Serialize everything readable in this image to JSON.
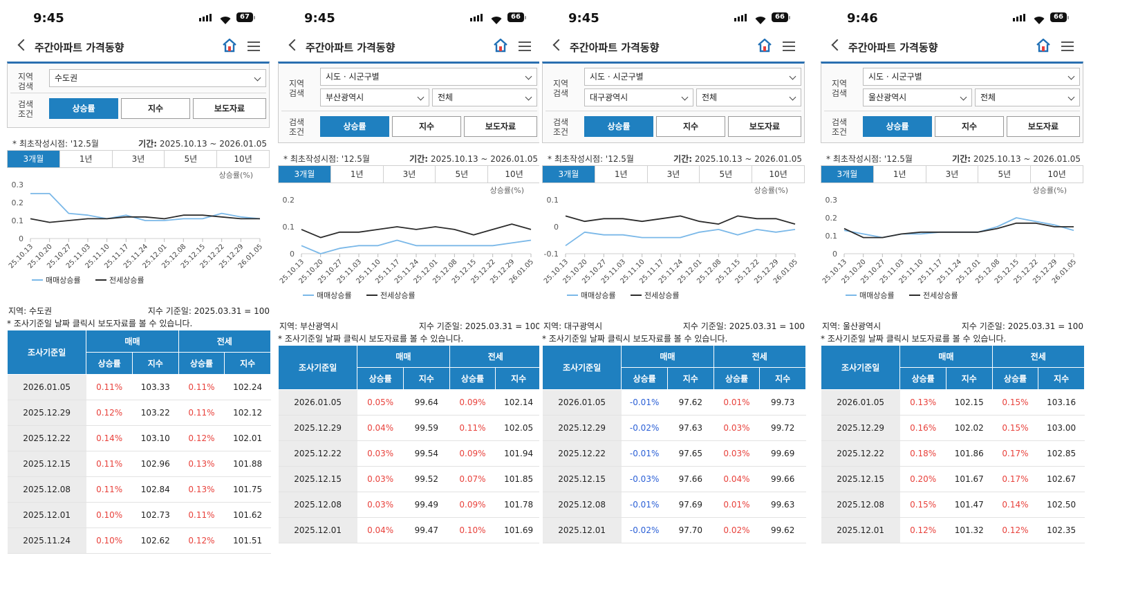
{
  "common": {
    "app_title": "주간아파트 가격동향",
    "label_region": "지역\n검색",
    "label_cond": "검색\n조건",
    "cond_buttons": [
      "상승률",
      "지수",
      "보도자료"
    ],
    "first_date": "* 최초작성시점: '12.5월",
    "period_label": "기간:",
    "period_value": "2025.10.13 ~ 2026.01.05",
    "period_tabs": [
      "3개월",
      "1년",
      "3년",
      "5년",
      "10년"
    ],
    "unit_label": "상승률(%)",
    "legend_sale": "매매상승률",
    "legend_jeonse": "전세상승률",
    "index_ref": "지수 기준일: 2025.03.31 = 100",
    "note": "* 조사기준일 날짜 클릭시 보도자료를 볼 수 있습니다.",
    "th_date": "조사기준일",
    "th_sale": "매매",
    "th_jeonse": "전세",
    "th_rate": "상승률",
    "th_index": "지수",
    "colors": {
      "accent": "#1f80c0",
      "sale_line": "#7ab8e8",
      "jeonse_line": "#2b2b2b",
      "up": "#e8413b",
      "down": "#2a5fd6"
    }
  },
  "panels": [
    {
      "time": "9:45",
      "battery": "67",
      "selects": [
        "수도권"
      ],
      "region": "지역: 수도권",
      "rows": [
        [
          "2026.01.05",
          "0.11%",
          "103.33",
          "0.11%",
          "102.24"
        ],
        [
          "2025.12.29",
          "0.12%",
          "103.22",
          "0.11%",
          "102.12"
        ],
        [
          "2025.12.22",
          "0.14%",
          "103.10",
          "0.12%",
          "102.01"
        ],
        [
          "2025.12.15",
          "0.11%",
          "102.96",
          "0.13%",
          "101.88"
        ],
        [
          "2025.12.08",
          "0.11%",
          "102.84",
          "0.13%",
          "101.75"
        ],
        [
          "2025.12.01",
          "0.10%",
          "102.73",
          "0.11%",
          "101.62"
        ],
        [
          "2025.11.24",
          "0.10%",
          "102.62",
          "0.12%",
          "101.51"
        ]
      ]
    },
    {
      "time": "9:45",
      "battery": "66",
      "selects": [
        "시도 · 시군구별",
        "부산광역시",
        "전체"
      ],
      "region": "지역: 부산광역시",
      "rows": [
        [
          "2026.01.05",
          "0.05%",
          "99.64",
          "0.09%",
          "102.14"
        ],
        [
          "2025.12.29",
          "0.04%",
          "99.59",
          "0.11%",
          "102.05"
        ],
        [
          "2025.12.22",
          "0.03%",
          "99.54",
          "0.09%",
          "101.94"
        ],
        [
          "2025.12.15",
          "0.03%",
          "99.52",
          "0.07%",
          "101.85"
        ],
        [
          "2025.12.08",
          "0.03%",
          "99.49",
          "0.09%",
          "101.78"
        ],
        [
          "2025.12.01",
          "0.04%",
          "99.47",
          "0.10%",
          "101.69"
        ]
      ]
    },
    {
      "time": "9:45",
      "battery": "66",
      "selects": [
        "시도 · 시군구별",
        "대구광역시",
        "전체"
      ],
      "region": "지역: 대구광역시",
      "rows": [
        [
          "2026.01.05",
          "-0.01%",
          "97.62",
          "0.01%",
          "99.73"
        ],
        [
          "2025.12.29",
          "-0.02%",
          "97.63",
          "0.03%",
          "99.72"
        ],
        [
          "2025.12.22",
          "-0.01%",
          "97.65",
          "0.03%",
          "99.69"
        ],
        [
          "2025.12.15",
          "-0.03%",
          "97.66",
          "0.04%",
          "99.66"
        ],
        [
          "2025.12.08",
          "-0.01%",
          "97.69",
          "0.01%",
          "99.63"
        ],
        [
          "2025.12.01",
          "-0.02%",
          "97.70",
          "0.02%",
          "99.62"
        ]
      ]
    },
    {
      "time": "9:46",
      "battery": "66",
      "selects": [
        "시도 · 시군구별",
        "울산광역시",
        "전체"
      ],
      "region": "지역: 울산광역시",
      "rows": [
        [
          "2026.01.05",
          "0.13%",
          "102.15",
          "0.15%",
          "103.16"
        ],
        [
          "2025.12.29",
          "0.16%",
          "102.02",
          "0.15%",
          "103.00"
        ],
        [
          "2025.12.22",
          "0.18%",
          "101.86",
          "0.17%",
          "102.85"
        ],
        [
          "2025.12.15",
          "0.20%",
          "101.67",
          "0.17%",
          "102.67"
        ],
        [
          "2025.12.08",
          "0.15%",
          "101.47",
          "0.14%",
          "102.50"
        ],
        [
          "2025.12.01",
          "0.12%",
          "101.32",
          "0.12%",
          "102.35"
        ]
      ]
    }
  ],
  "chart_data": [
    {
      "type": "line",
      "x": [
        "25.10.13",
        "25.10.20",
        "25.10.27",
        "25.11.03",
        "25.11.10",
        "25.11.17",
        "25.11.24",
        "25.12.01",
        "25.12.08",
        "25.12.15",
        "25.12.22",
        "25.12.29",
        "26.01.05"
      ],
      "yticks": [
        0,
        0.1,
        0.2,
        0.3
      ],
      "ylim": [
        0,
        0.3
      ],
      "ylabel": "상승률(%)",
      "series": [
        {
          "name": "매매상승률",
          "values": [
            0.25,
            0.25,
            0.14,
            0.13,
            0.11,
            0.13,
            0.1,
            0.1,
            0.11,
            0.11,
            0.14,
            0.12,
            0.11
          ]
        },
        {
          "name": "전세상승률",
          "values": [
            0.11,
            0.09,
            0.1,
            0.11,
            0.11,
            0.12,
            0.12,
            0.11,
            0.13,
            0.13,
            0.12,
            0.11,
            0.11
          ]
        }
      ]
    },
    {
      "type": "line",
      "x": [
        "25.10.13",
        "25.10.20",
        "25.10.27",
        "25.11.03",
        "25.11.10",
        "25.11.17",
        "25.11.24",
        "25.12.01",
        "25.12.08",
        "25.12.15",
        "25.12.22",
        "25.12.29",
        "26.01.05"
      ],
      "yticks": [
        0,
        0.1,
        0.2
      ],
      "ylim": [
        0,
        0.2
      ],
      "ylabel": "상승률(%)",
      "series": [
        {
          "name": "매매상승률",
          "values": [
            0.03,
            0.0,
            0.02,
            0.03,
            0.03,
            0.05,
            0.03,
            0.03,
            0.03,
            0.03,
            0.03,
            0.04,
            0.05
          ]
        },
        {
          "name": "전세상승률",
          "values": [
            0.09,
            0.06,
            0.08,
            0.08,
            0.09,
            0.1,
            0.09,
            0.1,
            0.09,
            0.07,
            0.09,
            0.11,
            0.09
          ]
        }
      ]
    },
    {
      "type": "line",
      "x": [
        "25.10.13",
        "25.10.20",
        "25.10.27",
        "25.11.03",
        "25.11.10",
        "25.11.17",
        "25.11.24",
        "25.12.01",
        "25.12.08",
        "25.12.15",
        "25.12.22",
        "25.12.29",
        "26.01.05"
      ],
      "yticks": [
        -0.1,
        0,
        0.1
      ],
      "ylim": [
        -0.1,
        0.1
      ],
      "ylabel": "상승률(%)",
      "series": [
        {
          "name": "매매상승률",
          "values": [
            -0.07,
            -0.02,
            -0.03,
            -0.03,
            -0.04,
            -0.04,
            -0.04,
            -0.02,
            -0.01,
            -0.03,
            -0.01,
            -0.02,
            -0.01
          ]
        },
        {
          "name": "전세상승률",
          "values": [
            0.04,
            0.02,
            0.03,
            0.03,
            0.02,
            0.03,
            0.04,
            0.02,
            0.01,
            0.04,
            0.03,
            0.03,
            0.01
          ]
        }
      ]
    },
    {
      "type": "line",
      "x": [
        "25.10.13",
        "25.10.20",
        "25.10.27",
        "25.11.03",
        "25.11.10",
        "25.11.17",
        "25.11.24",
        "25.12.01",
        "25.12.08",
        "25.12.15",
        "25.12.22",
        "25.12.29",
        "26.01.05"
      ],
      "yticks": [
        0,
        0.1,
        0.2,
        0.3
      ],
      "ylim": [
        0,
        0.3
      ],
      "ylabel": "상승률(%)",
      "series": [
        {
          "name": "매매상승률",
          "values": [
            0.13,
            0.11,
            0.09,
            0.11,
            0.11,
            0.12,
            0.12,
            0.12,
            0.15,
            0.2,
            0.18,
            0.16,
            0.13
          ]
        },
        {
          "name": "전세상승률",
          "values": [
            0.14,
            0.09,
            0.09,
            0.11,
            0.12,
            0.12,
            0.12,
            0.12,
            0.14,
            0.17,
            0.17,
            0.15,
            0.15
          ]
        }
      ]
    }
  ]
}
